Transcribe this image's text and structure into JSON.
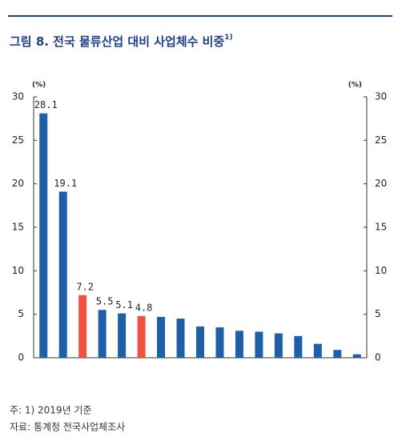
{
  "chart_data": {
    "type": "bar",
    "title": "그림 8. 전국 물류산업 대비 사업체수 비중",
    "title_note": "1)",
    "y_label": "(%)",
    "y2_label": "(%)",
    "categories": [
      null,
      null,
      null,
      null,
      null,
      null,
      null,
      null,
      null,
      null,
      null,
      null,
      null,
      null,
      null,
      null,
      null
    ],
    "values": [
      28.1,
      19.1,
      7.2,
      5.5,
      5.1,
      4.8,
      4.7,
      4.5,
      3.6,
      3.5,
      3.1,
      3.0,
      2.8,
      2.5,
      1.6,
      0.9,
      0.4
    ],
    "value_labels": [
      "28.1",
      "19.1",
      "7.2",
      "5.5",
      "5.1",
      "4.8",
      null,
      null,
      null,
      null,
      null,
      null,
      null,
      null,
      null,
      null,
      null
    ],
    "colors": [
      "#1f5ea8",
      "#1f5ea8",
      "#f0503f",
      "#1f5ea8",
      "#1f5ea8",
      "#f0503f",
      "#1f5ea8",
      "#1f5ea8",
      "#1f5ea8",
      "#1f5ea8",
      "#1f5ea8",
      "#1f5ea8",
      "#1f5ea8",
      "#1f5ea8",
      "#1f5ea8",
      "#1f5ea8",
      "#1f5ea8"
    ],
    "ylim": [
      0,
      30
    ],
    "yticks": [
      0,
      5,
      10,
      15,
      20,
      25,
      30
    ],
    "y2lim": [
      0,
      30
    ],
    "y2ticks": [
      0,
      5,
      10,
      15,
      20,
      25,
      30
    ],
    "notes": [
      "주: 1) 2019년 기준",
      "자료: 통계청 전국사업체조사"
    ]
  }
}
